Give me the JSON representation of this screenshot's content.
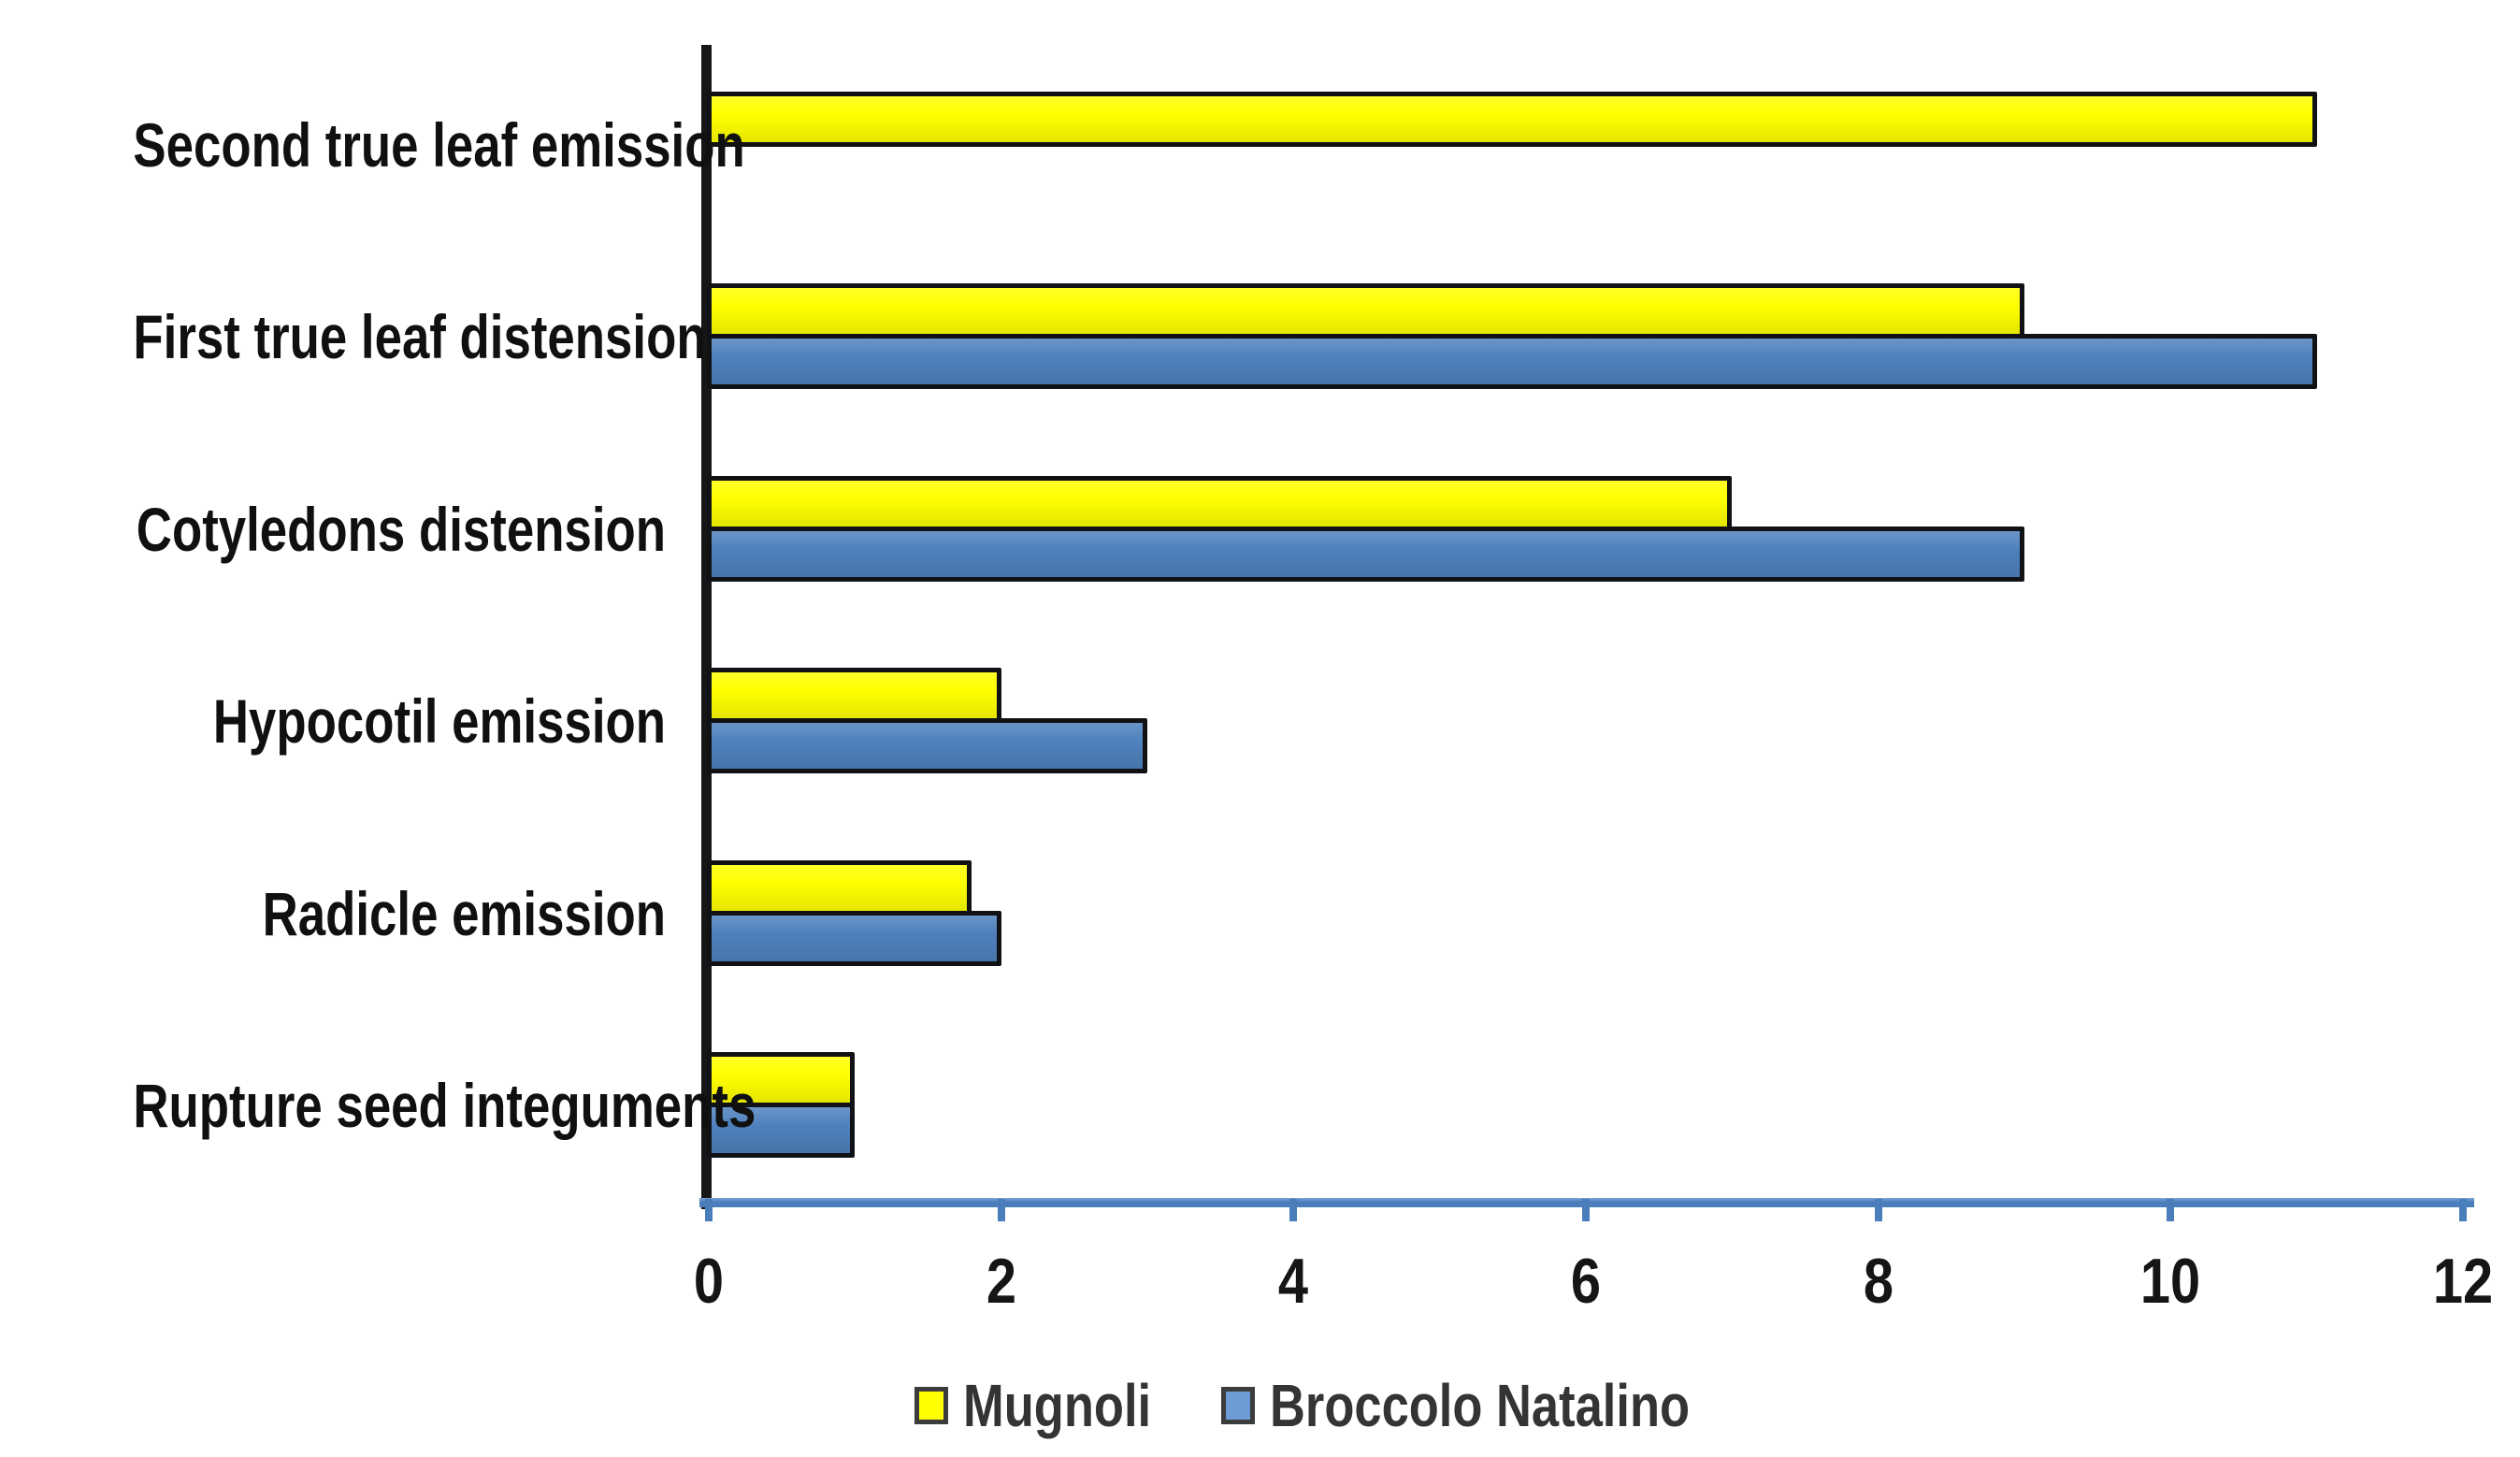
{
  "chart_data": {
    "type": "bar",
    "orientation": "horizontal",
    "categories": [
      "Second true leaf emission",
      "First true leaf distension",
      "Cotyledons distension",
      "Hypocotil emission",
      "Radicle emission",
      "Rupture seed integuments"
    ],
    "series": [
      {
        "name": "Mugnoli",
        "color": "#FFFF00",
        "legend_color": "#FFFF00",
        "values": [
          11,
          9,
          7,
          2,
          1.8,
          1
        ]
      },
      {
        "name": "Broccolo Natalino",
        "color": "#4F81BD",
        "legend_color": "#6D9BD6",
        "values": [
          0,
          11,
          9,
          3,
          2,
          1
        ]
      }
    ],
    "xlim": [
      0,
      12
    ],
    "x_ticks": [
      0,
      2,
      4,
      6,
      8,
      10,
      12
    ],
    "grid": false,
    "legend_position": "bottom",
    "axis_colors": {
      "x_axis_line": "#4A7EBB",
      "y_axis_line": "#161616",
      "tick_label_color": "#151515",
      "category_label_color": "#101010",
      "legend_text_color": "#343434",
      "background": "#FFFFFF"
    }
  }
}
